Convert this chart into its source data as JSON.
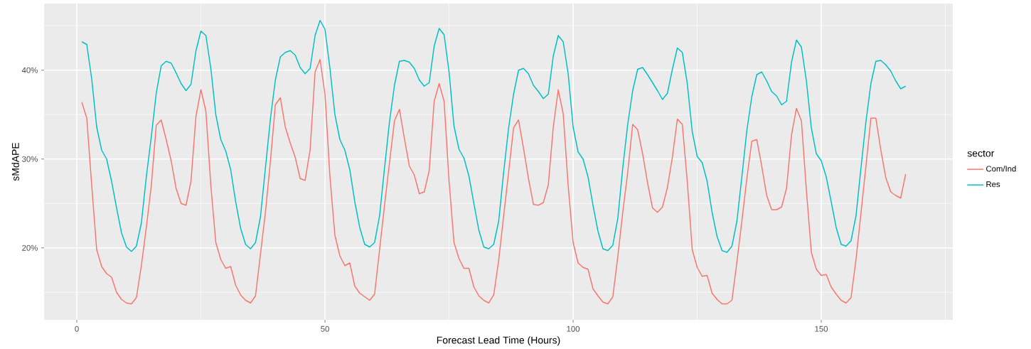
{
  "chart_data": {
    "type": "line",
    "xlabel": "Forecast Lead Time (Hours)",
    "ylabel": "sMdAPE",
    "legend_title": "sector",
    "legend": "right",
    "grid": true,
    "line_style": "solid",
    "xlim": [
      -6.6,
      176.5
    ],
    "ylim": [
      11.9,
      47.5
    ],
    "xticks": [
      0,
      {
        "value": 25,
        "label": null
      },
      50,
      {
        "value": 75,
        "label": null
      },
      100,
      {
        "value": 125,
        "label": null
      },
      150,
      {
        "value": 175,
        "label": null
      }
    ],
    "yticks": [
      {
        "value": 15,
        "label": null
      },
      {
        "value": 20,
        "label": "20%"
      },
      {
        "value": 25,
        "label": null
      },
      {
        "value": 30,
        "label": "30%"
      },
      {
        "value": 35,
        "label": null
      },
      {
        "value": 40,
        "label": "40%"
      },
      {
        "value": 45,
        "label": null
      }
    ],
    "x": [
      1,
      2,
      3,
      4,
      5,
      6,
      7,
      8,
      9,
      10,
      11,
      12,
      13,
      14,
      15,
      16,
      17,
      18,
      19,
      20,
      21,
      22,
      23,
      24,
      25,
      26,
      27,
      28,
      29,
      30,
      31,
      32,
      33,
      34,
      35,
      36,
      37,
      38,
      39,
      40,
      41,
      42,
      43,
      44,
      45,
      46,
      47,
      48,
      49,
      50,
      51,
      52,
      53,
      54,
      55,
      56,
      57,
      58,
      59,
      60,
      61,
      62,
      63,
      64,
      65,
      66,
      67,
      68,
      69,
      70,
      71,
      72,
      73,
      74,
      75,
      76,
      77,
      78,
      79,
      80,
      81,
      82,
      83,
      84,
      85,
      86,
      87,
      88,
      89,
      90,
      91,
      92,
      93,
      94,
      95,
      96,
      97,
      98,
      99,
      100,
      101,
      102,
      103,
      104,
      105,
      106,
      107,
      108,
      109,
      110,
      111,
      112,
      113,
      114,
      115,
      116,
      117,
      118,
      119,
      120,
      121,
      122,
      123,
      124,
      125,
      126,
      127,
      128,
      129,
      130,
      131,
      132,
      133,
      134,
      135,
      136,
      137,
      138,
      139,
      140,
      141,
      142,
      143,
      144,
      145,
      146,
      147,
      148,
      149,
      150,
      151,
      152,
      153,
      154,
      155,
      156,
      157,
      158,
      159,
      160,
      161,
      162,
      163,
      164,
      165,
      166,
      167
    ],
    "series": [
      {
        "name": "Com/Ind",
        "color": "#f8766d",
        "values": [
          36.4,
          34.6,
          27,
          19.8,
          17.9,
          17.1,
          16.7,
          15,
          14.2,
          13.8,
          13.7,
          14.4,
          18,
          22.3,
          27,
          33.8,
          34.4,
          32.2,
          29.8,
          26.7,
          25,
          24.8,
          27.5,
          34.8,
          37.8,
          35.4,
          27,
          20.6,
          18.7,
          17.7,
          17.9,
          15.8,
          14.7,
          14.1,
          13.8,
          14.6,
          19.3,
          24,
          29.7,
          36.1,
          36.9,
          33.6,
          31.8,
          30.2,
          27.8,
          27.6,
          31,
          39.8,
          41.2,
          37.3,
          28,
          21.4,
          19.1,
          18,
          18.3,
          15.7,
          14.9,
          14.5,
          14.1,
          14.8,
          19.8,
          24.8,
          29.6,
          34.3,
          35.6,
          32.3,
          29.2,
          28.2,
          26.1,
          26.3,
          28.7,
          36.5,
          38.5,
          36.5,
          27.5,
          20.6,
          18.8,
          17.7,
          17.7,
          15.6,
          14.6,
          14.1,
          13.8,
          14.7,
          18.6,
          23.6,
          28.5,
          33.5,
          34.4,
          31.2,
          27.8,
          24.9,
          24.8,
          25.1,
          27.1,
          33.6,
          37.8,
          35.1,
          27,
          20.6,
          18.3,
          17.8,
          17.6,
          15.4,
          14.6,
          13.9,
          13.7,
          14.5,
          19,
          24,
          28.5,
          33.9,
          33.3,
          30.6,
          27.3,
          24.5,
          24,
          24.6,
          26.8,
          30.2,
          34.5,
          33.9,
          27.5,
          19.8,
          17.8,
          16.8,
          16.9,
          14.9,
          14.2,
          13.7,
          13.7,
          14.1,
          18.4,
          23,
          27.8,
          32,
          32.2,
          29.2,
          25.9,
          24.3,
          24.3,
          24.6,
          26.7,
          32.7,
          35.7,
          34.3,
          26.5,
          19.5,
          17.6,
          16.9,
          17,
          15.6,
          14.8,
          14.1,
          13.8,
          14.4,
          18.7,
          23.9,
          29.2,
          34.6,
          34.6,
          31,
          27.9,
          26.3,
          25.9,
          25.6,
          28.3
        ]
      },
      {
        "name": "Res",
        "color": "#00bfc4",
        "values": [
          43.2,
          42.9,
          39,
          33.6,
          31,
          30,
          27.5,
          24.5,
          21.7,
          20.1,
          19.6,
          20.2,
          22.8,
          28,
          32.5,
          37.4,
          40.5,
          41,
          40.8,
          39.7,
          38.5,
          37.7,
          38.4,
          42.2,
          44.4,
          43.9,
          40.2,
          35,
          32.2,
          30.9,
          28.8,
          25.2,
          22.2,
          20.4,
          19.9,
          20.6,
          23.5,
          29,
          34.5,
          38.9,
          41.5,
          42,
          42.2,
          41.7,
          40.3,
          39.6,
          40.2,
          43.9,
          45.6,
          44.6,
          40.2,
          35,
          32.2,
          31,
          28.8,
          25.2,
          22.3,
          20.4,
          20.1,
          20.6,
          23.6,
          29,
          34.2,
          38.3,
          41,
          41.1,
          40.9,
          40.2,
          38.9,
          38.2,
          38.6,
          42.7,
          44.7,
          44,
          39.8,
          33.7,
          31.1,
          30.1,
          28.1,
          25,
          22,
          20.1,
          19.9,
          20.4,
          23,
          28.5,
          33.5,
          37.3,
          40,
          40.2,
          39.6,
          38.3,
          37.6,
          36.8,
          37.3,
          41.6,
          43.9,
          43.2,
          39.6,
          33.6,
          30.8,
          30,
          28,
          24.8,
          21.9,
          19.9,
          19.7,
          20.3,
          23.3,
          29,
          33.9,
          37.7,
          40.1,
          40.3,
          39.5,
          38.6,
          37.7,
          36.7,
          37.4,
          40.1,
          42.5,
          42,
          38.5,
          33.1,
          30.3,
          29.6,
          27.5,
          24,
          21.3,
          19.7,
          19.5,
          20.2,
          23,
          28,
          33.2,
          37,
          39.5,
          39.8,
          38.8,
          37.6,
          37.1,
          36.1,
          36.5,
          40.9,
          43.4,
          42.6,
          38.8,
          33.5,
          30.6,
          29.8,
          28,
          25.2,
          22.3,
          20.4,
          20.2,
          20.8,
          23.6,
          29,
          34.2,
          38.5,
          41,
          41.1,
          40.6,
          39.9,
          38.8,
          37.9,
          38.2
        ]
      }
    ]
  }
}
